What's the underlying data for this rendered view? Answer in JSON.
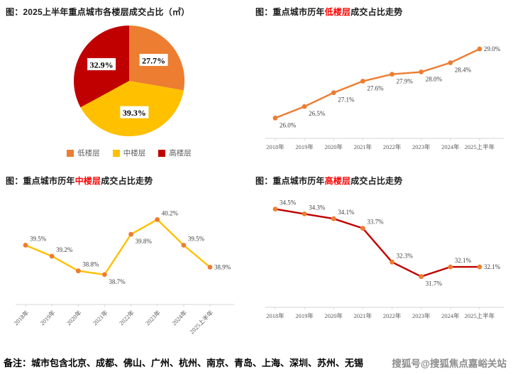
{
  "colors": {
    "orange": "#ED7D31",
    "yellow": "#FFC000",
    "dark_red": "#C00000",
    "title_highlight": "#FF0000",
    "axis": "#D6D6D6",
    "label_text": "#404040",
    "watermark_gray": "#8C8C8C"
  },
  "footer": {
    "note_label": "备注：",
    "note_text": "城市包含北京、成都、佛山、广州、杭州、南京、青岛、上海、深圳、苏州、无锡",
    "watermark": "搜狐号@搜狐焦点嘉峪关站"
  },
  "chart_data": [
    {
      "type": "pie",
      "title": "图：2025上半年重点城市各楼层成交占比（㎡）",
      "labels": [
        "低楼层",
        "中楼层",
        "高楼层"
      ],
      "values": [
        27.7,
        39.3,
        32.9
      ],
      "colors": [
        "#ED7D31",
        "#FFC000",
        "#C00000"
      ],
      "data_label_format": "percent",
      "legend_position": "bottom",
      "start_angle": "top",
      "direction": "clockwise"
    },
    {
      "type": "line",
      "title_prefix": "图：重点城市历年",
      "title_highlight": "低楼层",
      "title_suffix": "成交占比走势",
      "categories": [
        "2018年",
        "2019年",
        "2020年",
        "2021年",
        "2022年",
        "2023年",
        "2024年",
        "2025上半年"
      ],
      "values": [
        26.0,
        26.5,
        27.1,
        27.6,
        27.9,
        28.0,
        28.4,
        29.0
      ],
      "unit": "%",
      "line_color": "#ED7D31",
      "marker_color": "#ED7D31",
      "ylim": [
        25.3,
        29.8
      ],
      "grid": false,
      "x_labels_rotated": false
    },
    {
      "type": "line",
      "title_prefix": "图：重点城市历年",
      "title_highlight": "中楼层",
      "title_suffix": "成交占比走势",
      "categories": [
        "2018年",
        "2019年",
        "2020年",
        "2021年",
        "2022年",
        "2023年",
        "2024年",
        "2025上半年"
      ],
      "values": [
        39.5,
        39.2,
        38.8,
        38.7,
        39.8,
        40.2,
        39.5,
        38.9
      ],
      "unit": "%",
      "line_color": "#FFC000",
      "marker_color": "#ED7D31",
      "ylim": [
        38.0,
        40.75
      ],
      "grid": false,
      "x_labels_rotated": true
    },
    {
      "type": "line",
      "title_prefix": "图：重点城市历年",
      "title_highlight": "高楼层",
      "title_suffix": "成交占比走势",
      "categories": [
        "2018年",
        "2019年",
        "2020年",
        "2021年",
        "2022年",
        "2023年",
        "2024年",
        "2025上半年"
      ],
      "values": [
        34.5,
        34.3,
        34.1,
        33.7,
        32.3,
        31.7,
        32.1,
        32.1
      ],
      "unit": "%",
      "line_color": "#C00000",
      "marker_color": "#ED7D31",
      "ylim": [
        30.6,
        34.9
      ],
      "grid": false,
      "x_labels_rotated": false
    }
  ]
}
